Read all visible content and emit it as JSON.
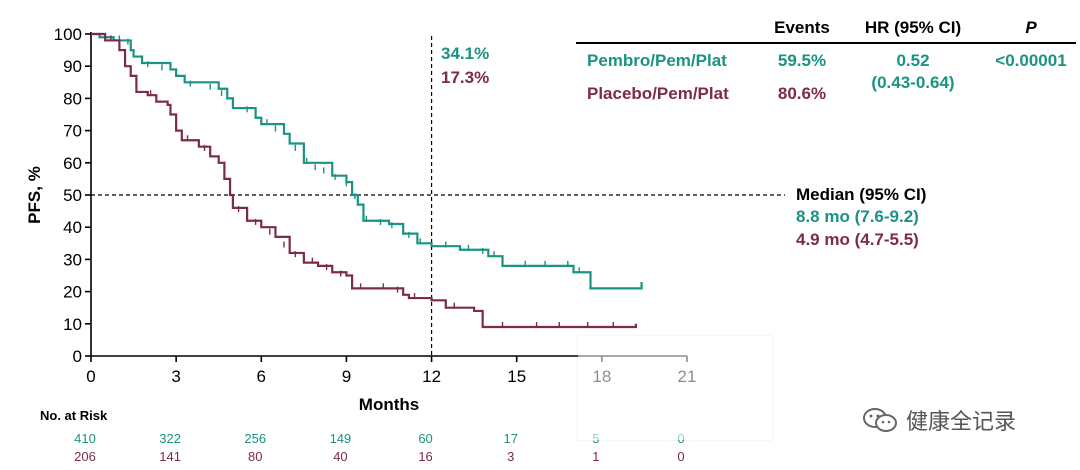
{
  "chart_data": {
    "type": "line",
    "subtype": "kaplan-meier",
    "xlabel": "Months",
    "ylabel": "PFS, %",
    "xlim": [
      0,
      21
    ],
    "ylim": [
      0,
      100
    ],
    "xticks": [
      0,
      3,
      6,
      9,
      12,
      15,
      18,
      21
    ],
    "yticks": [
      0,
      10,
      20,
      30,
      40,
      50,
      60,
      70,
      80,
      90,
      100
    ],
    "reference_lines": {
      "x": 12,
      "y": 50
    },
    "landmark_labels": [
      "34.1%",
      "17.3%"
    ],
    "series": [
      {
        "name": "Pembro/Pem/Plat",
        "color": "#1a9382",
        "events": "59.5%",
        "median": "8.8 mo (7.6-9.2)",
        "points": [
          [
            0,
            100
          ],
          [
            0.3,
            99
          ],
          [
            0.8,
            98
          ],
          [
            1.4,
            95
          ],
          [
            1.5,
            93
          ],
          [
            1.8,
            91
          ],
          [
            2.8,
            89
          ],
          [
            3.0,
            87
          ],
          [
            3.3,
            85
          ],
          [
            4.5,
            83
          ],
          [
            4.8,
            80
          ],
          [
            5.0,
            77
          ],
          [
            5.8,
            74
          ],
          [
            6.0,
            72
          ],
          [
            6.8,
            69
          ],
          [
            7.0,
            66
          ],
          [
            7.5,
            60
          ],
          [
            8.5,
            56
          ],
          [
            9.0,
            54
          ],
          [
            9.2,
            50
          ],
          [
            9.4,
            47
          ],
          [
            9.6,
            42
          ],
          [
            10.5,
            41
          ],
          [
            11.0,
            38
          ],
          [
            11.5,
            35
          ],
          [
            12.0,
            34.1
          ],
          [
            13.0,
            33
          ],
          [
            14.0,
            31
          ],
          [
            14.5,
            28
          ],
          [
            17.0,
            26
          ],
          [
            17.6,
            21
          ],
          [
            19.4,
            21
          ],
          [
            19.4,
            23
          ]
        ],
        "censor": [
          [
            1.0,
            98
          ],
          [
            1.3,
            97
          ],
          [
            2.0,
            90
          ],
          [
            2.5,
            89
          ],
          [
            3.5,
            84
          ],
          [
            4.2,
            83
          ],
          [
            4.6,
            81
          ],
          [
            5.5,
            76
          ],
          [
            6.2,
            72
          ],
          [
            6.5,
            70
          ],
          [
            7.2,
            64
          ],
          [
            7.6,
            60
          ],
          [
            7.9,
            58
          ],
          [
            8.2,
            57
          ],
          [
            8.6,
            55
          ],
          [
            9.0,
            53
          ],
          [
            9.3,
            49
          ],
          [
            9.7,
            42
          ],
          [
            10.2,
            41
          ],
          [
            10.6,
            40
          ],
          [
            11.0,
            38
          ],
          [
            11.2,
            37
          ],
          [
            11.6,
            35
          ],
          [
            12.5,
            34
          ],
          [
            13.3,
            33
          ],
          [
            13.8,
            32
          ],
          [
            14.2,
            31
          ],
          [
            15.3,
            28
          ],
          [
            16.0,
            28
          ],
          [
            16.8,
            28
          ],
          [
            17.2,
            26
          ]
        ]
      },
      {
        "name": "Placebo/Pem/Plat",
        "color": "#7d2a4d",
        "events": "80.6%",
        "median": "4.9 mo (4.7-5.5)",
        "points": [
          [
            0,
            100
          ],
          [
            0.5,
            98
          ],
          [
            1.0,
            95
          ],
          [
            1.2,
            90
          ],
          [
            1.4,
            87
          ],
          [
            1.6,
            82
          ],
          [
            2.0,
            81
          ],
          [
            2.3,
            79
          ],
          [
            2.7,
            78
          ],
          [
            2.8,
            75
          ],
          [
            3.0,
            70
          ],
          [
            3.2,
            67
          ],
          [
            3.8,
            65
          ],
          [
            4.2,
            62
          ],
          [
            4.5,
            60
          ],
          [
            4.7,
            55
          ],
          [
            4.9,
            50
          ],
          [
            5.0,
            46
          ],
          [
            5.5,
            42
          ],
          [
            6.0,
            40
          ],
          [
            6.5,
            37
          ],
          [
            7.0,
            32
          ],
          [
            7.5,
            29
          ],
          [
            8.0,
            28
          ],
          [
            8.5,
            26
          ],
          [
            9.0,
            25
          ],
          [
            9.2,
            21
          ],
          [
            10.0,
            21
          ],
          [
            11.0,
            19
          ],
          [
            11.2,
            18
          ],
          [
            12.0,
            17.3
          ],
          [
            12.5,
            15
          ],
          [
            13.5,
            14
          ],
          [
            13.8,
            9
          ],
          [
            19.2,
            9
          ],
          [
            19.2,
            10
          ]
        ],
        "censor": [
          [
            0.7,
            98
          ],
          [
            1.4,
            88
          ],
          [
            2.1,
            81
          ],
          [
            3.4,
            67
          ],
          [
            4.0,
            64
          ],
          [
            5.2,
            45
          ],
          [
            5.8,
            41
          ],
          [
            6.3,
            38
          ],
          [
            6.8,
            34
          ],
          [
            7.2,
            31
          ],
          [
            7.8,
            29
          ],
          [
            8.3,
            27
          ],
          [
            8.8,
            25
          ],
          [
            9.5,
            21
          ],
          [
            10.3,
            21
          ],
          [
            10.8,
            20
          ],
          [
            11.4,
            18
          ],
          [
            12.8,
            15
          ],
          [
            14.5,
            9
          ],
          [
            15.7,
            9
          ],
          [
            16.5,
            9
          ],
          [
            17.5,
            9
          ],
          [
            18.4,
            9
          ]
        ]
      }
    ],
    "table": {
      "headers": [
        "Events",
        "HR (95% CI)",
        "P"
      ],
      "hr": "0.52",
      "hr_ci": "(0.43-0.64)",
      "p_value": "<0.00001"
    },
    "median_title": "Median (95% CI)",
    "risk_table": {
      "title": "No. at Risk",
      "times": [
        0,
        3,
        6,
        9,
        12,
        15,
        18,
        21
      ],
      "pembro": [
        "410",
        "322",
        "256",
        "149",
        "60",
        "17",
        "5",
        "0"
      ],
      "placebo": [
        "206",
        "141",
        "80",
        "40",
        "16",
        "3",
        "1",
        "0"
      ]
    }
  },
  "watermark": {
    "text": "健康全记录",
    "icon": "wechat-icon"
  },
  "colors": {
    "pembro": "#1a9382",
    "placebo": "#7d2a4d",
    "axis": "#000000"
  }
}
